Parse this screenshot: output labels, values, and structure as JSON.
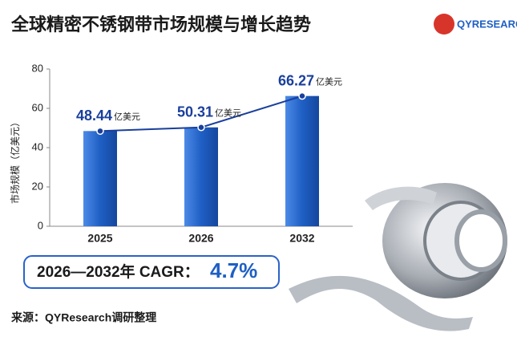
{
  "chart_data": {
    "type": "bar",
    "title": "全球精密不锈钢带市场规模与增长趋势",
    "y_label": "市场规模（亿美元）",
    "categories": [
      "2025",
      "2026",
      "2032"
    ],
    "values": [
      48.44,
      50.31,
      66.27
    ],
    "value_label_unit": "亿美元",
    "color": "#1f5fc4",
    "line_color": "#1a3f9c",
    "ylim": [
      0,
      80
    ],
    "yticks": [
      0,
      20,
      40,
      60,
      80
    ],
    "cagr_label": "2026—2032年 CAGR：",
    "cagr_value": "4.7%",
    "source": "来源：QYResearch调研整理",
    "logo": "QYRESEARCH"
  }
}
